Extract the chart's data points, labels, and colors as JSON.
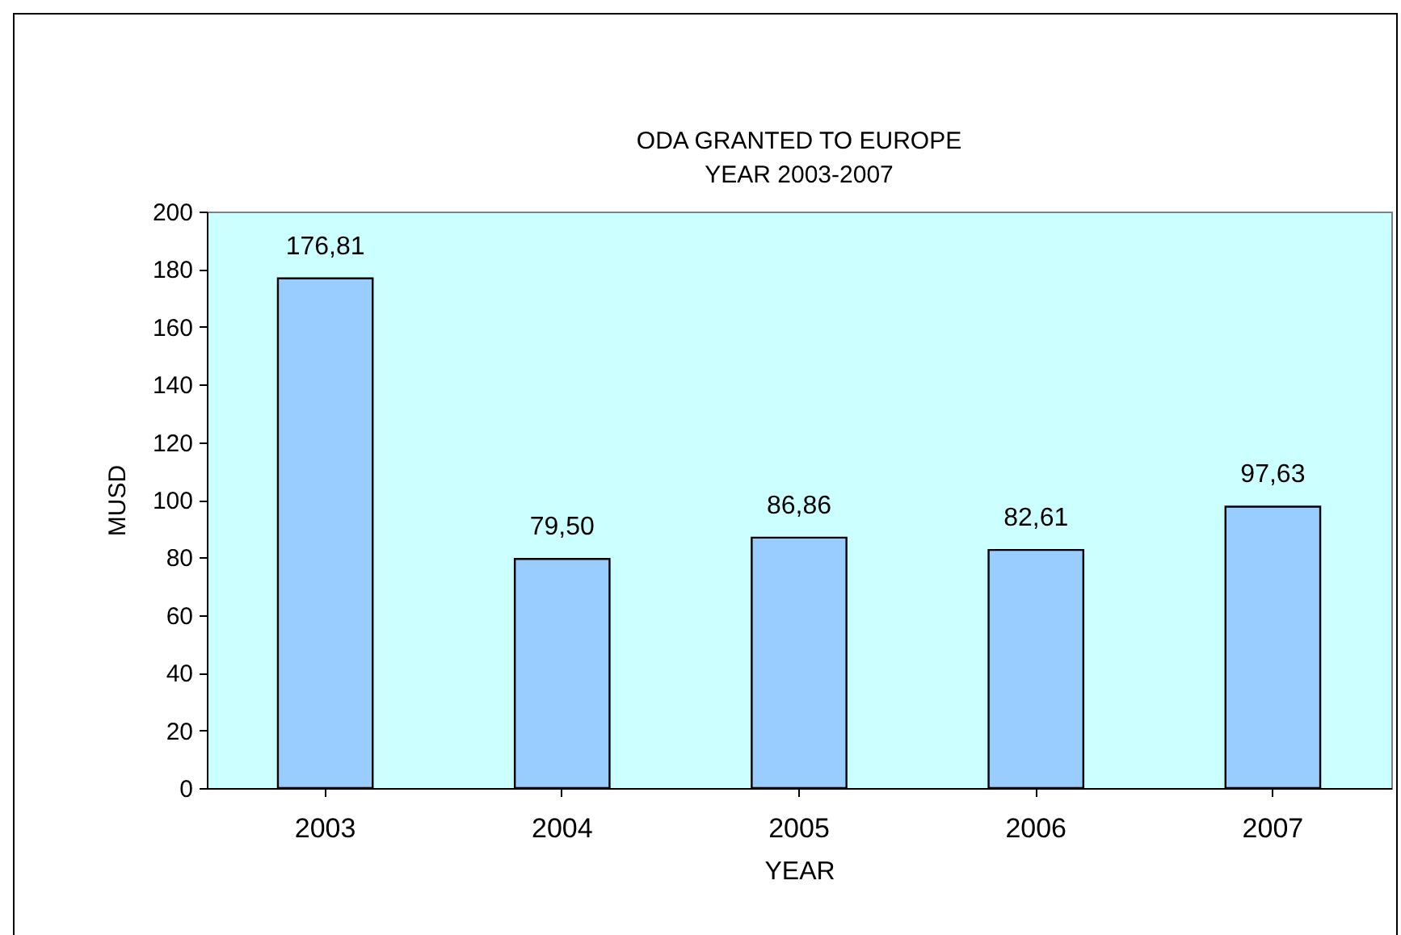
{
  "chart_data": {
    "type": "bar",
    "title": "ODA GRANTED TO EUROPE",
    "subtitle": "YEAR 2003-2007",
    "xlabel": "YEAR",
    "ylabel": "MUSD",
    "categories": [
      "2003",
      "2004",
      "2005",
      "2006",
      "2007"
    ],
    "values": [
      176.81,
      79.5,
      86.86,
      82.61,
      97.63
    ],
    "value_labels": [
      "176,81",
      "79,50",
      "86,86",
      "82,61",
      "97,63"
    ],
    "color": "#99ccff",
    "ylim": [
      0,
      200
    ],
    "yticks": [
      0,
      20,
      40,
      60,
      80,
      100,
      120,
      140,
      160,
      180,
      200
    ],
    "grid": false
  }
}
